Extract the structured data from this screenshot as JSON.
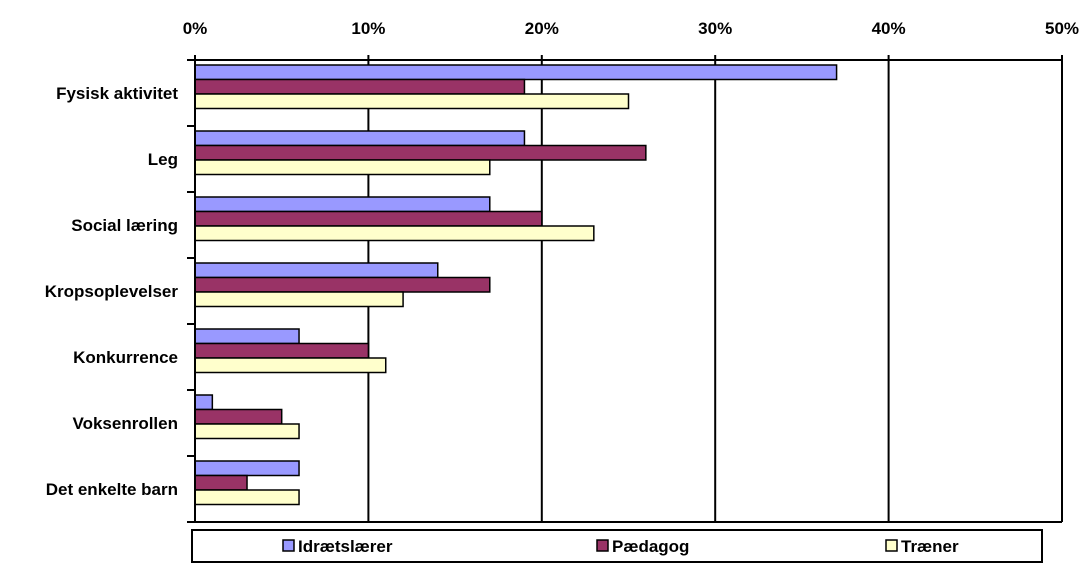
{
  "chart_data": {
    "type": "bar",
    "orientation": "horizontal",
    "categories": [
      "Fysisk aktivitet",
      "Leg",
      "Social læring",
      "Kropsoplevelser",
      "Konkurrence",
      "Voksenrollen",
      "Det enkelte barn"
    ],
    "series": [
      {
        "name": "Idrætslærer",
        "color": "#9999ff",
        "values": [
          37,
          19,
          17,
          14,
          6,
          1,
          6
        ]
      },
      {
        "name": "Pædagog",
        "color": "#993366",
        "values": [
          19,
          26,
          20,
          17,
          10,
          5,
          3
        ]
      },
      {
        "name": "Træner",
        "color": "#ffffcc",
        "values": [
          25,
          17,
          23,
          12,
          11,
          6,
          6
        ]
      }
    ],
    "x_ticks": [
      "0%",
      "10%",
      "20%",
      "30%",
      "40%",
      "50%"
    ],
    "xlim": [
      0,
      50
    ],
    "x_axis_position": "top",
    "grid": true,
    "legend_position": "bottom"
  }
}
